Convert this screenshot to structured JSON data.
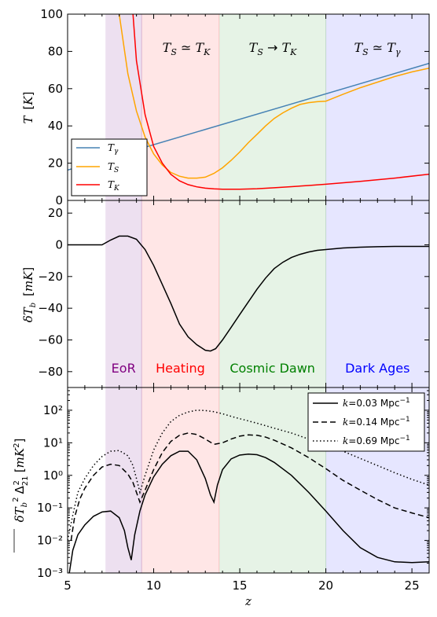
{
  "chart_data": [
    {
      "type": "line",
      "panel": "temperature",
      "ylabel": "T [K]",
      "ylim": [
        0,
        100
      ],
      "xlim": [
        5,
        26
      ],
      "yticks": [
        "0",
        "20",
        "40",
        "60",
        "80",
        "100"
      ],
      "region_labels": [
        "T_S ≃ T_K",
        "T_S → T_K",
        "T_S ≃ T_γ"
      ],
      "legend": {
        "placement": "lower-left",
        "entries": [
          "T_γ",
          "T_S",
          "T_K"
        ]
      },
      "series": [
        {
          "name": "T_γ",
          "color": "#4682b4",
          "x": [
            5,
            26
          ],
          "y": [
            16.3,
            73.6
          ]
        },
        {
          "name": "T_S",
          "color": "#ffa500",
          "x": [
            8.0,
            8.5,
            9.0,
            9.5,
            10.0,
            10.5,
            11.0,
            11.5,
            12.0,
            12.5,
            13.0,
            13.5,
            14.0,
            14.5,
            15.0,
            15.5,
            16.0,
            16.5,
            17.0,
            17.5,
            18.0,
            18.5,
            19.0,
            19.5,
            20.0,
            21.0,
            22.0,
            23.0,
            24.0,
            25.0,
            26.0
          ],
          "y": [
            100,
            68,
            48,
            34,
            25,
            19,
            15,
            13,
            12,
            12,
            12.5,
            14.5,
            17.5,
            21.5,
            26,
            31,
            35.5,
            40,
            44,
            47,
            49.5,
            51.5,
            52.5,
            53,
            53.3,
            57,
            60.5,
            63.5,
            66.5,
            69,
            71
          ]
        },
        {
          "name": "T_K",
          "color": "#ff0000",
          "x": [
            8.8,
            9.0,
            9.5,
            10.0,
            10.5,
            11.0,
            11.5,
            12.0,
            12.5,
            13.0,
            13.5,
            14.0,
            15.0,
            16.0,
            17.0,
            18.0,
            19.0,
            20.0,
            22.0,
            24.0,
            26.0
          ],
          "y": [
            100,
            75,
            46,
            29,
            20,
            14,
            10.5,
            8.5,
            7.3,
            6.6,
            6.2,
            6.0,
            6.0,
            6.3,
            6.8,
            7.4,
            8.0,
            8.7,
            10.2,
            12.0,
            14.1
          ]
        }
      ]
    },
    {
      "type": "line",
      "panel": "brightness-temperature",
      "ylabel": "δT_b [mK]",
      "ylim": [
        -90,
        28
      ],
      "xlim": [
        5,
        26
      ],
      "yticks": [
        "20",
        "0",
        "−20",
        "−40",
        "−60",
        "−80"
      ],
      "region_labels": [
        "EoR",
        "Heating",
        "Cosmic Dawn",
        "Dark Ages"
      ],
      "series": [
        {
          "name": "δT_b",
          "color": "#000000",
          "x": [
            5.0,
            6.0,
            7.0,
            7.5,
            8.0,
            8.5,
            9.0,
            9.5,
            10.0,
            10.5,
            11.0,
            11.5,
            12.0,
            12.5,
            13.0,
            13.3,
            13.6,
            14.0,
            14.5,
            15.0,
            15.5,
            16.0,
            16.5,
            17.0,
            17.5,
            18.0,
            18.5,
            19.0,
            19.5,
            20.0,
            21.0,
            22.0,
            23.0,
            24.0,
            26.0
          ],
          "y": [
            0,
            0,
            0,
            3,
            5.5,
            5.5,
            3.5,
            -3,
            -13,
            -25,
            -37,
            -50,
            -58,
            -63,
            -66.5,
            -67,
            -65.5,
            -60,
            -52,
            -44,
            -36,
            -28,
            -21,
            -15,
            -11,
            -8,
            -6,
            -4.5,
            -3.5,
            -3,
            -2,
            -1.5,
            -1.2,
            -1,
            -1
          ]
        }
      ]
    },
    {
      "type": "line",
      "panel": "power-spectrum",
      "ylabel": "δT̄_b² Δ²₂₁ [mK²]",
      "xlabel": "z",
      "yscale": "log",
      "ylim": [
        0.001,
        500
      ],
      "xlim": [
        5,
        26
      ],
      "xticks": [
        "5",
        "10",
        "15",
        "20",
        "25"
      ],
      "yticks": [
        "10²",
        "10¹",
        "10⁰",
        "10⁻¹",
        "10⁻²",
        "10⁻³"
      ],
      "legend": {
        "placement": "top-right",
        "entries": [
          "k=0.03 Mpc⁻¹",
          "k=0.14 Mpc⁻¹",
          "k=0.69 Mpc⁻¹"
        ]
      },
      "series": [
        {
          "name": "k=0.03 Mpc⁻¹",
          "style": "solid",
          "color": "#000000",
          "x": [
            5.1,
            5.3,
            5.6,
            6.0,
            6.5,
            7.0,
            7.5,
            8.0,
            8.3,
            8.5,
            8.7,
            8.9,
            9.2,
            9.5,
            10.0,
            10.5,
            11.0,
            11.5,
            12.0,
            12.5,
            13.0,
            13.3,
            13.5,
            13.7,
            14.0,
            14.5,
            15.0,
            15.5,
            16.0,
            16.5,
            17.0,
            18.0,
            19.0,
            20.0,
            21.0,
            22.0,
            23.0,
            24.0,
            25.0,
            26.0
          ],
          "y": [
            0.001,
            0.005,
            0.015,
            0.03,
            0.055,
            0.075,
            0.08,
            0.05,
            0.02,
            0.006,
            0.0025,
            0.015,
            0.08,
            0.25,
            0.9,
            2.2,
            4.0,
            5.5,
            5.5,
            3.0,
            0.8,
            0.25,
            0.15,
            0.5,
            1.5,
            3.2,
            4.2,
            4.5,
            4.3,
            3.5,
            2.5,
            1.0,
            0.3,
            0.08,
            0.02,
            0.006,
            0.003,
            0.0022,
            0.0021,
            0.0022
          ]
        },
        {
          "name": "k=0.14 Mpc⁻¹",
          "style": "dashed",
          "color": "#000000",
          "x": [
            5.2,
            5.4,
            5.7,
            6.0,
            6.5,
            7.0,
            7.5,
            8.0,
            8.5,
            8.8,
            9.0,
            9.2,
            9.5,
            10.0,
            10.5,
            11.0,
            11.5,
            12.0,
            12.5,
            13.0,
            13.5,
            14.0,
            14.5,
            15.0,
            15.5,
            16.0,
            16.5,
            17.0,
            18.0,
            19.0,
            20.0,
            21.0,
            22.0,
            23.0,
            24.0,
            25.0,
            26.0
          ],
          "y": [
            0.01,
            0.05,
            0.18,
            0.4,
            1.0,
            1.8,
            2.2,
            2.0,
            1.1,
            0.6,
            0.3,
            0.15,
            0.35,
            1.5,
            5.0,
            11,
            17,
            20,
            18,
            13,
            9,
            10,
            13,
            16,
            17.5,
            17,
            15,
            12,
            7,
            3.5,
            1.6,
            0.7,
            0.35,
            0.18,
            0.1,
            0.07,
            0.05
          ]
        },
        {
          "name": "k=0.69 Mpc⁻¹",
          "style": "dotted",
          "color": "#000000",
          "x": [
            5.0,
            5.3,
            5.6,
            6.0,
            6.5,
            7.0,
            7.5,
            8.0,
            8.5,
            8.8,
            9.0,
            9.2,
            9.5,
            10.0,
            10.5,
            11.0,
            11.5,
            12.0,
            12.5,
            13.0,
            13.5,
            14.0,
            14.5,
            15.0,
            16.0,
            17.0,
            18.0,
            19.0,
            20.0,
            21.0,
            22.0,
            23.0,
            24.0,
            25.0,
            26.0
          ],
          "y": [
            0.01,
            0.06,
            0.3,
            0.8,
            2.0,
            3.8,
            5.5,
            5.8,
            4.0,
            2.0,
            0.8,
            0.3,
            1.0,
            6.0,
            20,
            45,
            70,
            88,
            100,
            98,
            90,
            78,
            65,
            55,
            40,
            28,
            20,
            13,
            9,
            5.5,
            3.3,
            2.0,
            1.2,
            0.75,
            0.5
          ]
        }
      ]
    }
  ],
  "regions": [
    {
      "name": "EoR",
      "from": 7.2,
      "to": 9.3,
      "fill": "#9955aa",
      "label_color": "#800080"
    },
    {
      "name": "Heating",
      "from": 9.3,
      "to": 13.8,
      "fill": "#ff7777",
      "label_color": "#ff0000"
    },
    {
      "name": "Cosmic Dawn",
      "from": 13.8,
      "to": 20.0,
      "fill": "#77bb77",
      "label_color": "#008000"
    },
    {
      "name": "Dark Ages",
      "from": 20.0,
      "to": 26.0,
      "fill": "#7777ff",
      "label_color": "#0000ff"
    }
  ]
}
